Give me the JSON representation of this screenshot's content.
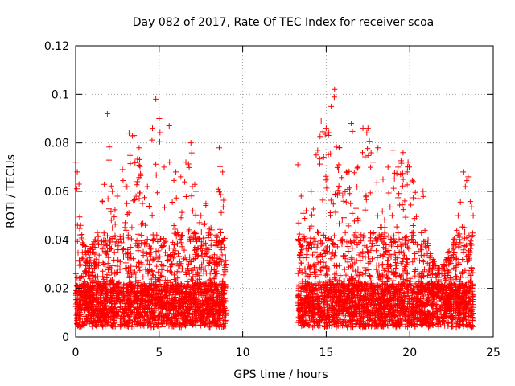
{
  "chart_data": {
    "type": "scatter",
    "title": "Day 082 of 2017, Rate Of TEC Index for receiver scoa",
    "xlabel": "GPS time / hours",
    "ylabel": "ROTI / TECUs",
    "xlim": [
      0,
      25
    ],
    "ylim": [
      0,
      0.12
    ],
    "x_ticks": [
      "0",
      "5",
      "10",
      "15",
      "20",
      "25"
    ],
    "y_ticks": [
      "0",
      "0.02",
      "0.04",
      "0.06",
      "0.08",
      "0.1",
      "0.12"
    ],
    "grid": true,
    "legend": "none",
    "marker": "plus",
    "color": "#ff0000",
    "segments": [
      {
        "x_start": 0.0,
        "x_end": 9.0
      },
      {
        "x_start": 13.3,
        "x_end": 23.8
      }
    ],
    "envelope": [
      [
        0.0,
        0.072
      ],
      [
        0.1,
        0.068
      ],
      [
        0.2,
        0.063
      ],
      [
        0.3,
        0.046
      ],
      [
        0.5,
        0.04
      ],
      [
        0.8,
        0.035
      ],
      [
        1.0,
        0.038
      ],
      [
        1.3,
        0.043
      ],
      [
        1.6,
        0.056
      ],
      [
        1.9,
        0.092
      ],
      [
        2.2,
        0.06
      ],
      [
        2.5,
        0.058
      ],
      [
        2.8,
        0.069
      ],
      [
        3.0,
        0.062
      ],
      [
        3.2,
        0.084
      ],
      [
        3.5,
        0.083
      ],
      [
        3.8,
        0.078
      ],
      [
        4.0,
        0.055
      ],
      [
        4.3,
        0.062
      ],
      [
        4.6,
        0.086
      ],
      [
        4.8,
        0.098
      ],
      [
        5.0,
        0.09
      ],
      [
        5.3,
        0.07
      ],
      [
        5.6,
        0.087
      ],
      [
        6.0,
        0.068
      ],
      [
        6.3,
        0.066
      ],
      [
        6.6,
        0.072
      ],
      [
        6.9,
        0.08
      ],
      [
        7.2,
        0.06
      ],
      [
        7.5,
        0.05
      ],
      [
        7.8,
        0.055
      ],
      [
        8.1,
        0.045
      ],
      [
        8.4,
        0.042
      ],
      [
        8.6,
        0.078
      ],
      [
        8.8,
        0.068
      ],
      [
        9.0,
        0.03
      ],
      [
        13.3,
        0.071
      ],
      [
        13.5,
        0.058
      ],
      [
        13.8,
        0.052
      ],
      [
        14.1,
        0.06
      ],
      [
        14.4,
        0.075
      ],
      [
        14.7,
        0.089
      ],
      [
        15.0,
        0.086
      ],
      [
        15.3,
        0.095
      ],
      [
        15.5,
        0.102
      ],
      [
        15.8,
        0.078
      ],
      [
        16.2,
        0.068
      ],
      [
        16.5,
        0.088
      ],
      [
        16.9,
        0.07
      ],
      [
        17.2,
        0.086
      ],
      [
        17.5,
        0.086
      ],
      [
        17.8,
        0.072
      ],
      [
        18.1,
        0.078
      ],
      [
        18.4,
        0.065
      ],
      [
        18.7,
        0.07
      ],
      [
        19.0,
        0.077
      ],
      [
        19.3,
        0.07
      ],
      [
        19.6,
        0.076
      ],
      [
        19.9,
        0.072
      ],
      [
        20.2,
        0.064
      ],
      [
        20.5,
        0.057
      ],
      [
        20.8,
        0.06
      ],
      [
        21.1,
        0.04
      ],
      [
        21.4,
        0.032
      ],
      [
        21.7,
        0.028
      ],
      [
        22.0,
        0.03
      ],
      [
        22.3,
        0.035
      ],
      [
        22.6,
        0.04
      ],
      [
        22.9,
        0.05
      ],
      [
        23.2,
        0.068
      ],
      [
        23.5,
        0.066
      ],
      [
        23.8,
        0.05
      ]
    ],
    "baseline_min": 0.004
  }
}
